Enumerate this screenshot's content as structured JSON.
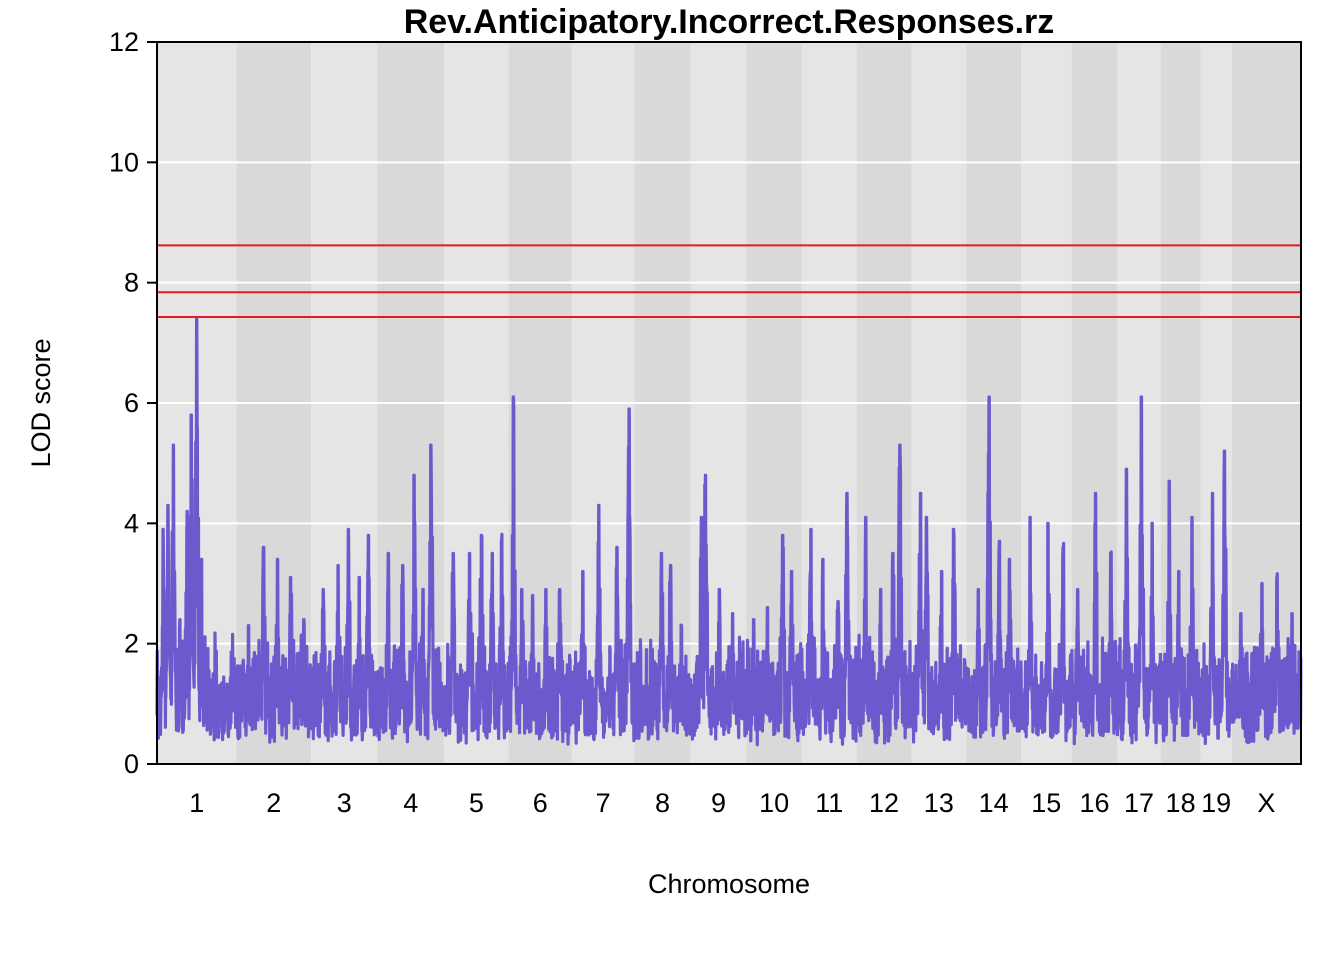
{
  "chart_data": {
    "type": "line",
    "title": "Rev.Anticipatory.Incorrect.Responses.rz",
    "xlabel": "Chromosome",
    "ylabel": "LOD score",
    "ylim": [
      0,
      12
    ],
    "yticks": [
      0,
      2,
      4,
      6,
      8,
      10,
      12
    ],
    "grid": true,
    "background_bands": true,
    "line_color": "#6a5acd",
    "threshold_color": "#e41a1c",
    "band_colors": [
      "#e5e5e5",
      "#d9d9d9"
    ],
    "thresholds": [
      8.62,
      7.84,
      7.43
    ],
    "chromosomes": [
      {
        "label": "1",
        "start": 0,
        "end": 132,
        "peaks": [
          [
            10,
            3.9
          ],
          [
            18,
            4.3
          ],
          [
            27,
            5.3
          ],
          [
            38,
            2.4
          ],
          [
            50,
            4.2
          ],
          [
            57,
            5.8
          ],
          [
            66,
            7.4
          ],
          [
            74,
            3.4
          ]
        ]
      },
      {
        "label": "2",
        "start": 132,
        "end": 256,
        "peaks": [
          [
            20,
            2.3
          ],
          [
            45,
            3.6
          ],
          [
            68,
            3.4
          ],
          [
            90,
            3.1
          ],
          [
            112,
            2.4
          ]
        ]
      },
      {
        "label": "3",
        "start": 256,
        "end": 366,
        "peaks": [
          [
            20,
            2.9
          ],
          [
            45,
            3.3
          ],
          [
            62,
            3.9
          ],
          [
            80,
            3.1
          ],
          [
            95,
            3.8
          ]
        ]
      },
      {
        "label": "4",
        "start": 366,
        "end": 477,
        "peaks": [
          [
            18,
            3.5
          ],
          [
            42,
            3.3
          ],
          [
            61,
            4.8
          ],
          [
            76,
            2.9
          ],
          [
            89,
            5.3
          ]
        ]
      },
      {
        "label": "5",
        "start": 477,
        "end": 584,
        "peaks": [
          [
            15,
            3.5
          ],
          [
            42,
            3.5
          ],
          [
            62,
            3.8
          ],
          [
            80,
            3.5
          ],
          [
            95,
            3.7
          ]
        ]
      },
      {
        "label": "6",
        "start": 584,
        "end": 689,
        "peaks": [
          [
            8,
            6.1
          ],
          [
            22,
            2.9
          ],
          [
            40,
            2.8
          ],
          [
            62,
            2.9
          ],
          [
            85,
            2.9
          ]
        ]
      },
      {
        "label": "7",
        "start": 689,
        "end": 793,
        "peaks": [
          [
            18,
            3.2
          ],
          [
            45,
            4.3
          ],
          [
            75,
            3.6
          ],
          [
            95,
            5.9
          ]
        ]
      },
      {
        "label": "8",
        "start": 793,
        "end": 886,
        "peaks": [
          [
            20,
            1.9
          ],
          [
            45,
            3.5
          ],
          [
            60,
            3.3
          ],
          [
            78,
            2.3
          ]
        ]
      },
      {
        "label": "9",
        "start": 886,
        "end": 979,
        "peaks": [
          [
            18,
            4.1
          ],
          [
            25,
            4.8
          ],
          [
            48,
            2.9
          ],
          [
            70,
            2.5
          ]
        ]
      },
      {
        "label": "10",
        "start": 979,
        "end": 1071,
        "peaks": [
          [
            12,
            2.4
          ],
          [
            35,
            2.6
          ],
          [
            60,
            3.8
          ],
          [
            75,
            3.2
          ]
        ]
      },
      {
        "label": "11",
        "start": 1071,
        "end": 1162,
        "peaks": [
          [
            15,
            3.9
          ],
          [
            35,
            3.4
          ],
          [
            60,
            2.7
          ],
          [
            75,
            4.5
          ]
        ]
      },
      {
        "label": "12",
        "start": 1162,
        "end": 1253,
        "peaks": [
          [
            15,
            4.1
          ],
          [
            40,
            2.9
          ],
          [
            60,
            3.5
          ],
          [
            72,
            5.3
          ]
        ]
      },
      {
        "label": "13",
        "start": 1253,
        "end": 1344,
        "peaks": [
          [
            15,
            4.5
          ],
          [
            25,
            4.1
          ],
          [
            50,
            3.2
          ],
          [
            70,
            3.9
          ]
        ]
      },
      {
        "label": "14",
        "start": 1344,
        "end": 1435,
        "peaks": [
          [
            20,
            2.9
          ],
          [
            38,
            6.1
          ],
          [
            55,
            3.7
          ],
          [
            72,
            3.4
          ]
        ]
      },
      {
        "label": "15",
        "start": 1435,
        "end": 1519,
        "peaks": [
          [
            15,
            4.1
          ],
          [
            45,
            4.0
          ],
          [
            70,
            3.6
          ]
        ]
      },
      {
        "label": "16",
        "start": 1519,
        "end": 1595,
        "peaks": [
          [
            10,
            2.9
          ],
          [
            40,
            4.5
          ],
          [
            65,
            3.5
          ]
        ]
      },
      {
        "label": "17",
        "start": 1595,
        "end": 1667,
        "peaks": [
          [
            15,
            4.9
          ],
          [
            40,
            6.1
          ],
          [
            58,
            4.0
          ]
        ]
      },
      {
        "label": "18",
        "start": 1667,
        "end": 1733,
        "peaks": [
          [
            14,
            4.7
          ],
          [
            30,
            3.2
          ],
          [
            52,
            4.1
          ]
        ]
      },
      {
        "label": "19",
        "start": 1733,
        "end": 1785,
        "peaks": [
          [
            20,
            4.5
          ],
          [
            40,
            5.2
          ]
        ]
      },
      {
        "label": "X",
        "start": 1785,
        "end": 1900,
        "peaks": [
          [
            15,
            2.5
          ],
          [
            50,
            3.0
          ],
          [
            75,
            3.1
          ],
          [
            100,
            2.5
          ]
        ]
      }
    ]
  }
}
